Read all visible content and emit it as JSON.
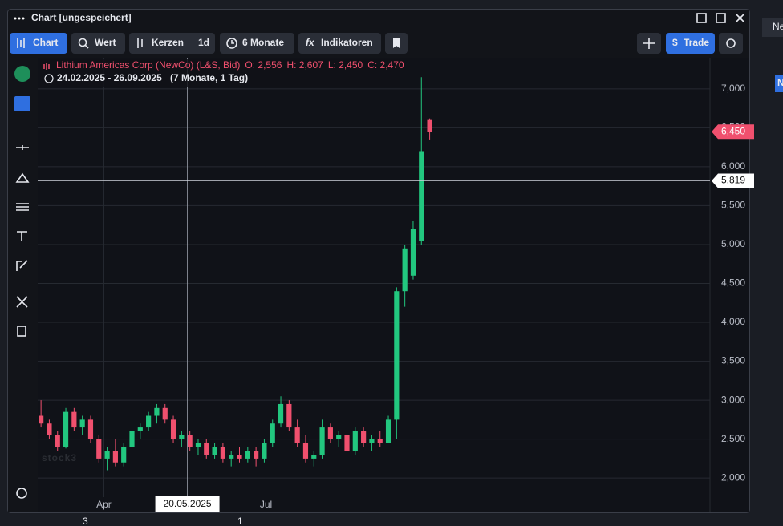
{
  "window": {
    "title": "Chart [ungespeichert]"
  },
  "toolbar": {
    "chart": "Chart",
    "wert": "Wert",
    "kerzen": "Kerzen",
    "interval": "1d",
    "range": "6 Monate",
    "indikatoren": "Indikatoren",
    "trade": "Trade"
  },
  "background": {
    "tab": "Ne",
    "badge": "N",
    "footer_left": "3",
    "footer_mid": "1"
  },
  "chart_data": {
    "type": "candlestick",
    "title": "Lithium Americas Corp (NewCo) (L&S, Bid)",
    "legend_values": [
      {
        "value": 2.556,
        "label": "O: 2,556"
      },
      {
        "value": 2.607,
        "label": "H: 2,607"
      },
      {
        "value": 2.45,
        "label": "L: 2,450"
      },
      {
        "value": 2.47,
        "label": "C: 2,470"
      }
    ],
    "subtitle": "24.02.2025 - 26.09.2025",
    "period": "(7 Monate, 1 Tag)",
    "watermark": "stock3",
    "open": [
      2.8,
      2.7,
      2.55,
      2.4,
      2.85,
      2.65,
      2.75,
      2.5,
      2.25,
      2.35,
      2.2,
      2.4,
      2.6,
      2.65,
      2.8,
      2.9,
      2.75,
      2.5,
      2.55,
      2.4,
      2.45,
      2.3,
      2.4,
      2.25,
      2.3,
      2.25,
      2.35,
      2.25,
      2.45,
      2.7,
      2.95,
      2.65,
      2.45,
      2.25,
      2.3,
      2.65,
      2.5,
      2.55,
      2.35,
      2.6,
      2.45,
      2.5,
      2.45,
      2.75,
      4.4,
      4.6,
      5.05,
      6.6
    ],
    "high": [
      3.0,
      2.75,
      2.6,
      2.9,
      2.9,
      2.8,
      2.8,
      2.55,
      2.4,
      2.5,
      2.45,
      2.65,
      2.7,
      2.85,
      2.95,
      2.95,
      2.8,
      2.6,
      2.6,
      2.5,
      2.5,
      2.45,
      2.45,
      2.35,
      2.4,
      2.4,
      2.4,
      2.5,
      2.75,
      3.05,
      3.0,
      2.75,
      2.55,
      2.35,
      2.75,
      2.7,
      2.6,
      2.6,
      2.65,
      2.65,
      2.55,
      2.6,
      2.8,
      4.45,
      5.0,
      5.3,
      7.15,
      6.62
    ],
    "low": [
      2.65,
      2.5,
      2.35,
      2.38,
      2.6,
      2.55,
      2.45,
      2.2,
      2.1,
      2.15,
      2.15,
      2.35,
      2.5,
      2.6,
      2.7,
      2.7,
      2.45,
      2.4,
      2.35,
      2.3,
      2.25,
      2.25,
      2.2,
      2.15,
      2.2,
      2.2,
      2.15,
      2.2,
      2.4,
      2.65,
      2.6,
      2.4,
      2.2,
      2.15,
      2.25,
      2.45,
      2.4,
      2.3,
      2.3,
      2.4,
      2.35,
      2.4,
      2.45,
      2.5,
      4.2,
      4.55,
      5.0,
      6.35
    ],
    "close": [
      2.7,
      2.55,
      2.4,
      2.85,
      2.65,
      2.75,
      2.5,
      2.25,
      2.35,
      2.2,
      2.4,
      2.6,
      2.65,
      2.8,
      2.9,
      2.75,
      2.5,
      2.55,
      2.4,
      2.45,
      2.3,
      2.4,
      2.25,
      2.3,
      2.25,
      2.35,
      2.25,
      2.45,
      2.7,
      2.95,
      2.65,
      2.45,
      2.25,
      2.3,
      2.65,
      2.5,
      2.55,
      2.35,
      2.6,
      2.45,
      2.5,
      2.45,
      2.75,
      4.4,
      4.95,
      5.2,
      6.2,
      6.45
    ],
    "up_color": "#22c77f",
    "down_color": "#f0506e",
    "xlim": [
      -0.4,
      80.9
    ],
    "xticks": [
      {
        "value": 7.6,
        "label": "Apr"
      },
      {
        "value": 27.2,
        "label": "Jul"
      }
    ],
    "ylim": [
      1.6,
      7.4
    ],
    "yticks": [
      {
        "value": 2,
        "label": "2,000"
      },
      {
        "value": 2.5,
        "label": "2,500"
      },
      {
        "value": 3,
        "label": "3,000"
      },
      {
        "value": 3.5,
        "label": "3,500"
      },
      {
        "value": 4,
        "label": "4,000"
      },
      {
        "value": 4.5,
        "label": "4,500"
      },
      {
        "value": 5,
        "label": "5,000"
      },
      {
        "value": 5.5,
        "label": "5,500"
      },
      {
        "value": 6,
        "label": "6,000"
      },
      {
        "value": 6.5,
        "label": "6,500"
      },
      {
        "value": 7,
        "label": "7,000"
      }
    ],
    "grid": true,
    "crosshair": {
      "x": {
        "value": 17.7,
        "label": "20.05.2025"
      },
      "y": {
        "value": 5.819,
        "label": "5,819"
      }
    },
    "last_price": {
      "value": 6.45,
      "label": "6,450"
    }
  }
}
